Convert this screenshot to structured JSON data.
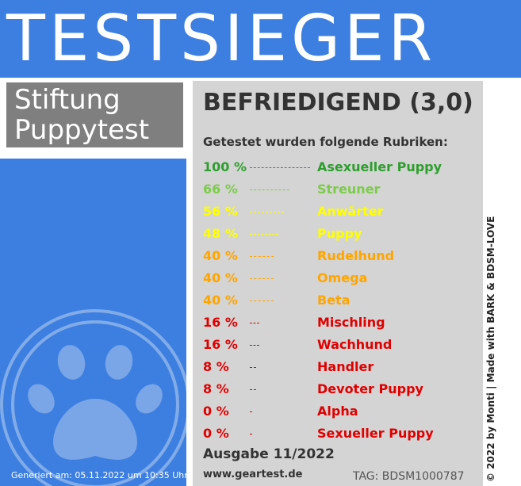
{
  "banner": {
    "title": "TESTSIEGER"
  },
  "brand": {
    "line1": "Stiftung",
    "line2": "Puppytest"
  },
  "result": {
    "verdict": "BEFRIEDIGEND (3,0)"
  },
  "intro": "Getestet wurden folgende Rubriken:",
  "rubrics": [
    {
      "percent": "100 %",
      "name": "Asexueller Puppy",
      "value": 100,
      "color": "#2e9e2e"
    },
    {
      "percent": "66 %",
      "name": "Streuner",
      "value": 66,
      "color": "#7ccc4a"
    },
    {
      "percent": "56 %",
      "name": "Anwärter",
      "value": 56,
      "color": "#ffff00"
    },
    {
      "percent": "48 %",
      "name": "Puppy",
      "value": 48,
      "color": "#ffff00"
    },
    {
      "percent": "40 %",
      "name": "Rudelhund",
      "value": 40,
      "color": "#ffa500"
    },
    {
      "percent": "40 %",
      "name": "Omega",
      "value": 40,
      "color": "#ffa500"
    },
    {
      "percent": "40 %",
      "name": "Beta",
      "value": 40,
      "color": "#ffa500"
    },
    {
      "percent": "16 %",
      "name": "Mischling",
      "value": 16,
      "color": "#e00000"
    },
    {
      "percent": "16 %",
      "name": "Wachhund",
      "value": 16,
      "color": "#e00000"
    },
    {
      "percent": "8 %",
      "name": "Handler",
      "value": 8,
      "color": "#e00000"
    },
    {
      "percent": "8 %",
      "name": "Devoter Puppy",
      "value": 8,
      "color": "#e00000"
    },
    {
      "percent": "0 %",
      "name": "Alpha",
      "value": 0,
      "color": "#e00000"
    },
    {
      "percent": "0 %",
      "name": "Sexueller Puppy",
      "value": 0,
      "color": "#e00000"
    }
  ],
  "footer": {
    "edition": "Ausgabe 11/2022",
    "website": "www.geartest.de",
    "tag": "TAG: BDSM1000787",
    "generated": "Generiert am: 05.11.2022 um 10:35 Uhr"
  },
  "copyright": "© 2022 by Monti | Made with BARK & BDSM-LOVE",
  "colors": {
    "blue": "#3d7fe0",
    "gray_box": "#7f7f7f",
    "panel": "#d4d4d4"
  },
  "icons": {
    "paw": "paw-print-icon"
  }
}
